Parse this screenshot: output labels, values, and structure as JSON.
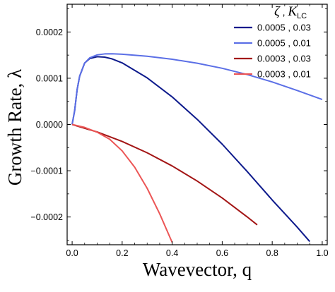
{
  "chart_data": {
    "type": "line",
    "xlabel": "Wavevector, q",
    "ylabel": "Growth Rate, λ",
    "xlim": [
      -0.02,
      1.02
    ],
    "ylim": [
      -0.00026,
      0.00026
    ],
    "xticks": [
      0.0,
      0.2,
      0.4,
      0.6,
      0.8,
      1.0
    ],
    "xtick_labels": [
      "0.0",
      "0.2",
      "0.4",
      "0.6",
      "0.8",
      "1.0"
    ],
    "yticks": [
      0.0002,
      0.0001,
      0.0,
      -0.0001,
      -0.0002
    ],
    "ytick_labels": [
      "0.0002",
      "0.0001",
      "0.0000",
      "−0.0001",
      "−0.0002"
    ],
    "grid": false,
    "legend": {
      "placement": "top-right",
      "header_symbol_1": "ζ",
      "header_separator": " , ",
      "header_symbol_2": "K",
      "header_symbol_2_sub": "LC"
    },
    "series": [
      {
        "name": "0.0005 , 0.03",
        "color": "#0d1a8c",
        "x": [
          0.0,
          0.01,
          0.02,
          0.03,
          0.05,
          0.07,
          0.1,
          0.13,
          0.16,
          0.2,
          0.3,
          0.4,
          0.5,
          0.6,
          0.7,
          0.8,
          0.9,
          0.95
        ],
        "y": [
          0.0,
          3e-05,
          7.56e-05,
          0.0001044,
          0.0001328,
          0.0001426,
          0.0001465,
          0.0001456,
          0.0001418,
          0.0001332,
          0.0001008,
          5.96e-05,
          1.11e-05,
          -4.25e-05,
          -0.0001017,
          -0.0001632,
          -0.000222,
          -0.000253
        ]
      },
      {
        "name": "0.0005 , 0.01",
        "color": "#5b6fe6",
        "x": [
          0.0,
          0.01,
          0.02,
          0.03,
          0.05,
          0.07,
          0.1,
          0.13,
          0.16,
          0.2,
          0.3,
          0.4,
          0.5,
          0.6,
          0.7,
          0.8,
          0.9,
          1.0
        ],
        "y": [
          0.0,
          3e-05,
          7.56e-05,
          0.0001044,
          0.0001328,
          0.000144,
          0.0001505,
          0.0001526,
          0.0001528,
          0.000152,
          0.0001475,
          0.000141,
          0.0001325,
          0.0001215,
          0.000108,
          9.2e-05,
          7.35e-05,
          5.4e-05
        ]
      },
      {
        "name": "0.0003 , 0.03",
        "color": "#a31515",
        "x": [
          0.0,
          0.1,
          0.2,
          0.3,
          0.4,
          0.5,
          0.6,
          0.7,
          0.74
        ],
        "y": [
          0.0,
          -1.62e-05,
          -3.67e-05,
          -6.12e-05,
          -8.97e-05,
          -0.0001223,
          -0.0001589,
          -0.0001998,
          -0.000217
        ]
      },
      {
        "name": "0.0003 , 0.01",
        "color": "#ec5656",
        "x": [
          0.0,
          0.05,
          0.1,
          0.15,
          0.2,
          0.25,
          0.3,
          0.35,
          0.4
        ],
        "y": [
          0.0,
          -6.3e-06,
          -1.66e-05,
          -3.18e-05,
          -5.71e-05,
          -9.23e-05,
          -0.000138,
          -0.000193,
          -0.000255
        ]
      }
    ]
  }
}
